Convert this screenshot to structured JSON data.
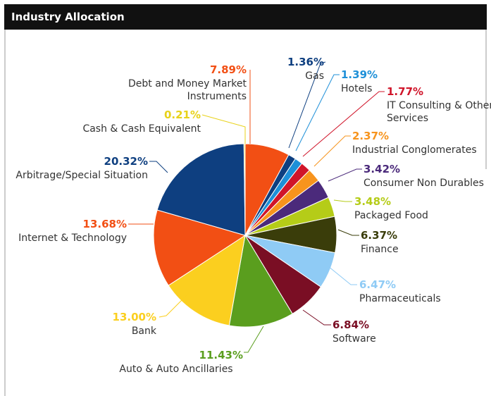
{
  "chart_data": {
    "type": "pie",
    "title": "Industry Allocation",
    "categories": [
      "Debt and Money Market Instruments",
      "Gas",
      "Hotels",
      "IT Consulting & Other Services",
      "Industrial Conglomerates",
      "Consumer Non Durables",
      "Packaged Food",
      "Finance",
      "Pharmaceuticals",
      "Software",
      "Auto & Auto Ancillaries",
      "Bank",
      "Internet & Technology",
      "Arbitrage/Special Situation",
      "Cash & Cash Equivalent"
    ],
    "values": [
      7.89,
      1.36,
      1.39,
      1.77,
      2.37,
      3.42,
      3.48,
      6.37,
      6.47,
      6.84,
      11.43,
      13.0,
      13.68,
      20.32,
      0.21
    ],
    "value_labels": [
      "7.89%",
      "1.36%",
      "1.39%",
      "1.77%",
      "2.37%",
      "3.42%",
      "3.48%",
      "6.37%",
      "6.47%",
      "6.84%",
      "11.43%",
      "13.00%",
      "13.68%",
      "20.32%",
      "0.21%"
    ],
    "colors": [
      "#f24f14",
      "#0e3f80",
      "#1e90d8",
      "#d0152a",
      "#f7941d",
      "#4b2a7b",
      "#b5cc18",
      "#3a3d0a",
      "#8fcbf5",
      "#7a0e24",
      "#5a9e1e",
      "#fbcf1f",
      "#f24f14",
      "#0e3f80",
      "#e8d21a"
    ]
  }
}
